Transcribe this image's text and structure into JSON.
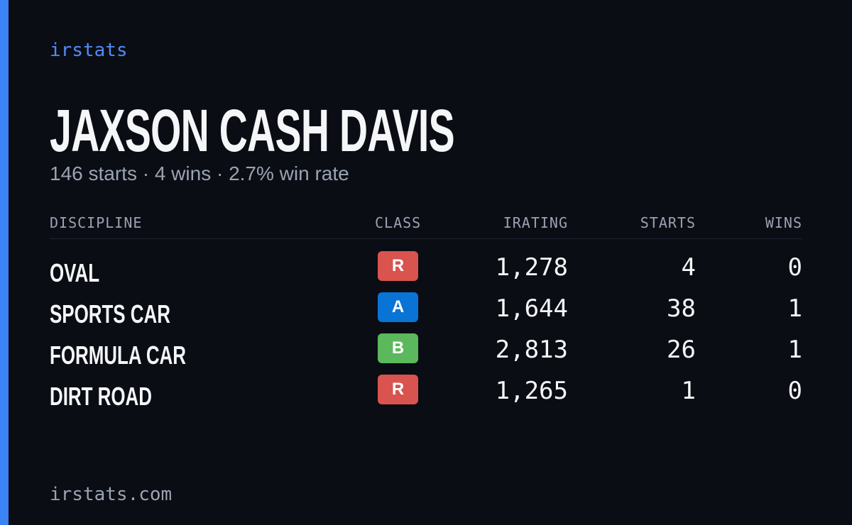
{
  "brand": "irstats",
  "driver": {
    "name": "JAXSON CASH DAVIS",
    "summary": "146 starts · 4 wins · 2.7% win rate"
  },
  "table": {
    "headers": [
      "DISCIPLINE",
      "CLASS",
      "IRATING",
      "STARTS",
      "WINS"
    ],
    "rows": [
      {
        "discipline": "OVAL",
        "class": {
          "label": "R",
          "color": "#d9534f"
        },
        "irating": "1,278",
        "starts": "4",
        "wins": "0"
      },
      {
        "discipline": "SPORTS CAR",
        "class": {
          "label": "A",
          "color": "#0a74d6"
        },
        "irating": "1,644",
        "starts": "38",
        "wins": "1"
      },
      {
        "discipline": "FORMULA CAR",
        "class": {
          "label": "B",
          "color": "#5cb85c"
        },
        "irating": "2,813",
        "starts": "26",
        "wins": "1"
      },
      {
        "discipline": "DIRT ROAD",
        "class": {
          "label": "R",
          "color": "#d9534f"
        },
        "irating": "1,265",
        "starts": "1",
        "wins": "0"
      }
    ]
  },
  "footer": "irstats.com"
}
